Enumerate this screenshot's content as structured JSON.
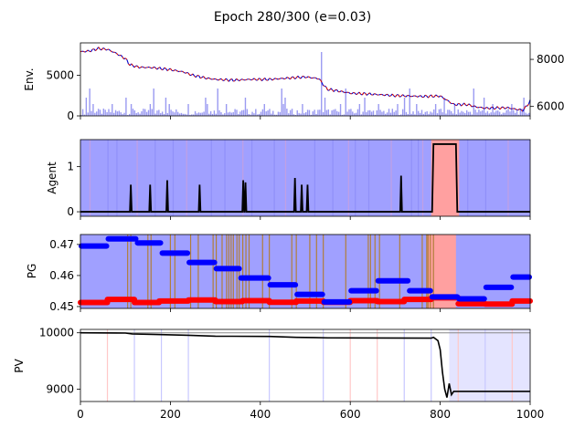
{
  "chart_data": {
    "title": "Epoch 280/300 (e=0.03)",
    "x_range": [
      0,
      1000
    ],
    "x_ticks": [
      0,
      200,
      400,
      600,
      800,
      1000
    ],
    "x_tick_labels": [
      "0",
      "200",
      "400",
      "600",
      "800",
      "1000"
    ],
    "panels": [
      {
        "id": "env",
        "type": "line",
        "ylabel": "Env.",
        "ylim": [
          0,
          9000
        ],
        "y_ticks": [
          0,
          5000
        ],
        "y_tick_labels": [
          "0",
          "5000"
        ],
        "secondary_ylim": [
          5600,
          8700
        ],
        "secondary_ticks": [
          6000,
          8000
        ],
        "secondary_tick_labels": [
          "6000",
          "8000"
        ],
        "price_points": [
          [
            0,
            7900
          ],
          [
            20,
            8000
          ],
          [
            40,
            8300
          ],
          [
            60,
            8200
          ],
          [
            80,
            7700
          ],
          [
            100,
            7050
          ],
          [
            110,
            6300
          ],
          [
            130,
            6000
          ],
          [
            160,
            5950
          ],
          [
            200,
            5700
          ],
          [
            230,
            5400
          ],
          [
            250,
            5000
          ],
          [
            280,
            4650
          ],
          [
            300,
            4500
          ],
          [
            340,
            4400
          ],
          [
            380,
            4500
          ],
          [
            420,
            4500
          ],
          [
            460,
            4650
          ],
          [
            500,
            4800
          ],
          [
            530,
            4600
          ],
          [
            548,
            3300
          ],
          [
            570,
            3100
          ],
          [
            600,
            2800
          ],
          [
            640,
            2700
          ],
          [
            700,
            2500
          ],
          [
            760,
            2400
          ],
          [
            800,
            2450
          ],
          [
            830,
            1400
          ],
          [
            860,
            1400
          ],
          [
            880,
            1100
          ],
          [
            900,
            950
          ],
          [
            950,
            1000
          ],
          [
            970,
            800
          ],
          [
            985,
            700
          ],
          [
            1000,
            1800
          ]
        ],
        "volume_color": "#8888ee",
        "price_colors": [
          "#cc0000",
          "#0000cc"
        ]
      },
      {
        "id": "agent",
        "type": "line",
        "ylabel": "Agent",
        "ylim": [
          -0.1,
          1.6
        ],
        "y_ticks": [
          0,
          1
        ],
        "y_tick_labels": [
          "0",
          "1"
        ],
        "spikes": [
          [
            112,
            0.6
          ],
          [
            155,
            0.6
          ],
          [
            193,
            0.7
          ],
          [
            265,
            0.6
          ],
          [
            362,
            0.7
          ],
          [
            367,
            0.65
          ],
          [
            477,
            0.75
          ],
          [
            492,
            0.6
          ],
          [
            505,
            0.6
          ],
          [
            713,
            0.8
          ]
        ],
        "plateau": {
          "start": 785,
          "end": 835,
          "value": 1.5
        },
        "plateau_shade": [
          780,
          842
        ],
        "background_color": "#a0a0ff",
        "shade_color": "#ffa0a0"
      },
      {
        "id": "pg",
        "type": "scatter",
        "ylabel": "PG",
        "ylim": [
          0.4494,
          0.4732
        ],
        "y_ticks": [
          0.45,
          0.46,
          0.47
        ],
        "y_tick_labels": [
          "0.45",
          "0.46",
          "0.47"
        ],
        "blue_steps": [
          [
            0,
            60,
            0.4695
          ],
          [
            60,
            125,
            0.4718
          ],
          [
            125,
            180,
            0.4705
          ],
          [
            180,
            240,
            0.4672
          ],
          [
            240,
            300,
            0.4642
          ],
          [
            300,
            355,
            0.4622
          ],
          [
            355,
            420,
            0.4592
          ],
          [
            420,
            480,
            0.457
          ],
          [
            480,
            540,
            0.4539
          ],
          [
            540,
            600,
            0.4515
          ],
          [
            600,
            660,
            0.4551
          ],
          [
            660,
            730,
            0.4583
          ],
          [
            730,
            780,
            0.4551
          ],
          [
            780,
            840,
            0.4531
          ],
          [
            840,
            900,
            0.4525
          ],
          [
            900,
            960,
            0.4562
          ],
          [
            960,
            1000,
            0.4595
          ]
        ],
        "red_steps": [
          [
            0,
            60,
            0.4513
          ],
          [
            60,
            120,
            0.4523
          ],
          [
            120,
            175,
            0.4513
          ],
          [
            175,
            240,
            0.4518
          ],
          [
            240,
            300,
            0.4521
          ],
          [
            300,
            360,
            0.4516
          ],
          [
            360,
            420,
            0.4519
          ],
          [
            420,
            480,
            0.4514
          ],
          [
            480,
            540,
            0.4518
          ],
          [
            540,
            600,
            0.4514
          ],
          [
            600,
            660,
            0.4519
          ],
          [
            660,
            720,
            0.4516
          ],
          [
            720,
            780,
            0.4523
          ],
          [
            780,
            840,
            0.4528
          ],
          [
            840,
            900,
            0.4509
          ],
          [
            900,
            960,
            0.4508
          ],
          [
            960,
            1000,
            0.4518
          ]
        ],
        "trade_lines": [
          105,
          112,
          150,
          157,
          200,
          210,
          245,
          262,
          295,
          302,
          315,
          325,
          330,
          335,
          340,
          348,
          353,
          361,
          368,
          375,
          405,
          420,
          470,
          480,
          510,
          525,
          540,
          590,
          640,
          645,
          655,
          665,
          710,
          760,
          770,
          773,
          778,
          785
        ],
        "trade_line_color": "#b07e3a",
        "shade_color": "#ffa0a0",
        "background_color": "#a0a0ff"
      },
      {
        "id": "pv",
        "type": "line",
        "ylabel": "PV",
        "ylim": [
          8780,
          10060
        ],
        "y_ticks": [
          9000,
          10000
        ],
        "y_tick_labels": [
          "9000",
          "10000"
        ],
        "pv_points": [
          [
            0,
            10000
          ],
          [
            100,
            9995
          ],
          [
            115,
            9980
          ],
          [
            170,
            9970
          ],
          [
            240,
            9955
          ],
          [
            300,
            9940
          ],
          [
            420,
            9935
          ],
          [
            480,
            9920
          ],
          [
            520,
            9915
          ],
          [
            550,
            9910
          ],
          [
            780,
            9905
          ],
          [
            785,
            9920
          ],
          [
            795,
            9860
          ],
          [
            800,
            9700
          ],
          [
            805,
            9300
          ],
          [
            810,
            9000
          ],
          [
            815,
            8850
          ],
          [
            820,
            9100
          ],
          [
            825,
            8900
          ],
          [
            830,
            8960
          ],
          [
            1000,
            8960
          ]
        ],
        "baseline": 10000,
        "vlines_blue": [
          120,
          180,
          240,
          420,
          540,
          720,
          780,
          900
        ],
        "vlines_red": [
          60,
          600,
          660,
          840,
          960
        ],
        "shade": [
          820,
          1000
        ]
      }
    ]
  }
}
